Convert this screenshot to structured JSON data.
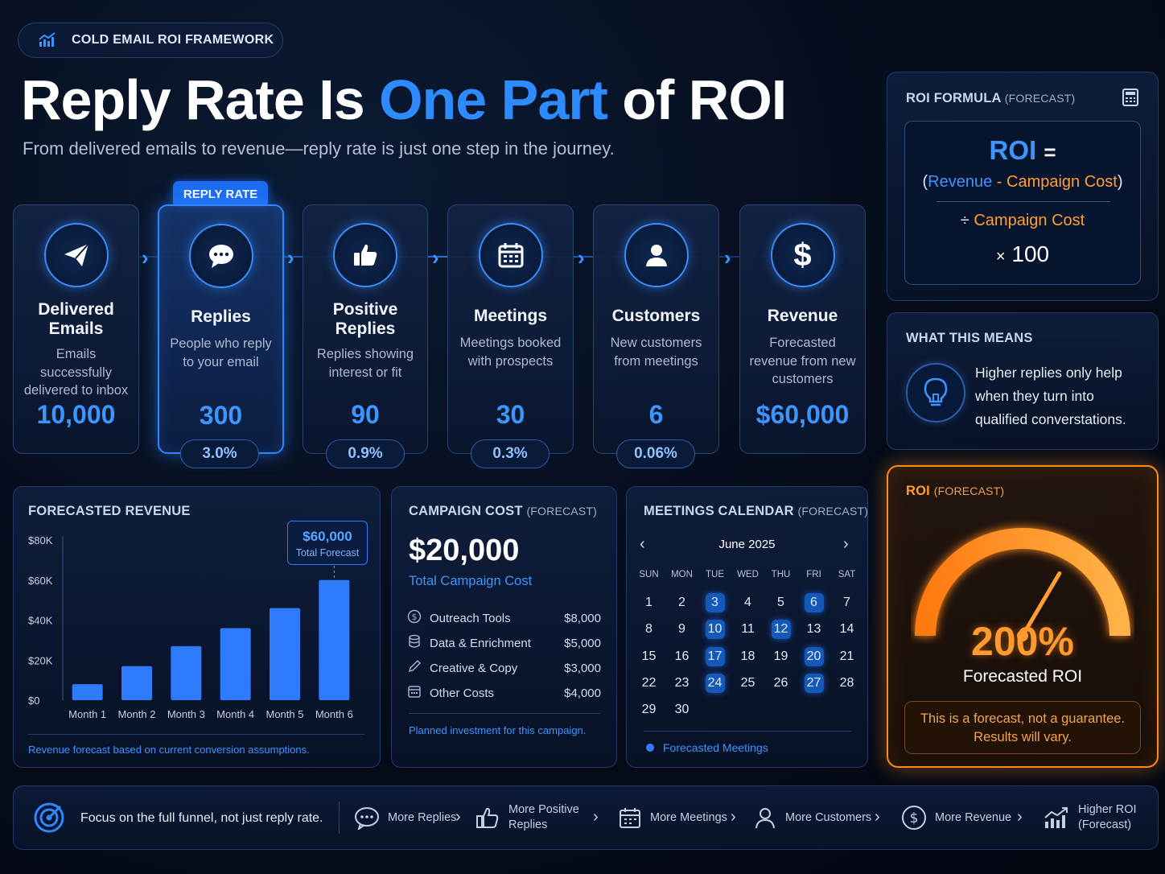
{
  "header": {
    "badge": "COLD EMAIL ROI FRAMEWORK",
    "title_part1": "Reply Rate Is ",
    "title_accent": "One Part",
    "title_part2": " of ROI",
    "subtitle": "From delivered emails to revenue—reply rate is just one step in the journey."
  },
  "funnel": {
    "highlight_tag": "REPLY RATE",
    "stages": [
      {
        "name": "Delivered Emails",
        "desc": "Emails successfully delivered to inbox",
        "value": "10,000",
        "pct": "",
        "icon": "paper-plane-icon"
      },
      {
        "name": "Replies",
        "desc": "People who reply to your email",
        "value": "300",
        "pct": "3.0%",
        "icon": "chat-bubble-icon"
      },
      {
        "name": "Positive Replies",
        "desc": "Replies showing interest or fit",
        "value": "90",
        "pct": "0.9%",
        "icon": "thumbs-up-icon"
      },
      {
        "name": "Meetings",
        "desc": "Meetings booked with prospects",
        "value": "30",
        "pct": "0.3%",
        "icon": "calendar-icon"
      },
      {
        "name": "Customers",
        "desc": "New customers from meetings",
        "value": "6",
        "pct": "0.06%",
        "icon": "user-icon"
      },
      {
        "name": "Revenue",
        "desc": "Forecasted revenue from new customers",
        "value": "$60,000",
        "pct": "",
        "icon": "dollar-icon"
      }
    ]
  },
  "formula": {
    "title": "ROI FORMULA",
    "title_suffix": "(FORECAST)",
    "roi": "ROI",
    "equals": "=",
    "open_paren": "(",
    "revenue": "Revenue",
    "minus": "-",
    "campaign_cost": "Campaign Cost",
    "close_paren": ")",
    "divide": "÷",
    "divide_term": "Campaign Cost",
    "times": "×",
    "multiplier": "100"
  },
  "meaning": {
    "title": "WHAT THIS MEANS",
    "text": "Higher replies only help when they turn into qualified converstations."
  },
  "roi": {
    "title": "ROI",
    "title_suffix": "(FORECAST)",
    "value": "200%",
    "label": "Forecasted ROI",
    "note_line1": "This is a forecast, not a guarantee.",
    "note_line2": "Results will vary.",
    "gauge_fraction": 0.67
  },
  "revenue_chart": {
    "title": "FORECASTED REVENUE",
    "callout_value": "$60,000",
    "callout_label": "Total Forecast",
    "footnote": "Revenue forecast based on current conversion assumptions."
  },
  "chart_data": {
    "type": "bar",
    "title": "FORECASTED REVENUE",
    "categories": [
      "Month 1",
      "Month 2",
      "Month 3",
      "Month 4",
      "Month 5",
      "Month 6"
    ],
    "values": [
      8000,
      17000,
      27000,
      36000,
      46000,
      60000
    ],
    "ylim": [
      0,
      80000
    ],
    "yticks": [
      "$0",
      "$20K",
      "$40K",
      "$60K",
      "$80K"
    ],
    "ytick_values": [
      0,
      20000,
      40000,
      60000,
      80000
    ],
    "xlabel": "",
    "ylabel": "",
    "grid": false,
    "annotation": {
      "text": "$60,000",
      "subtext": "Total Forecast",
      "category": "Month 6"
    },
    "color": "#2f7bff"
  },
  "cost": {
    "title": "CAMPAIGN COST",
    "title_suffix": "(FORECAST)",
    "total": "$20,000",
    "total_label": "Total Campaign Cost",
    "items": [
      {
        "label": "Outreach Tools",
        "amount": "$8,000",
        "icon": "dollar-circle-icon"
      },
      {
        "label": "Data & Enrichment",
        "amount": "$5,000",
        "icon": "database-icon"
      },
      {
        "label": "Creative & Copy",
        "amount": "$3,000",
        "icon": "pencil-icon"
      },
      {
        "label": "Other Costs",
        "amount": "$4,000",
        "icon": "calendar-small-icon"
      }
    ],
    "footnote": "Planned investment for this campaign."
  },
  "calendar": {
    "title": "MEETINGS CALENDAR",
    "title_suffix": "(FORECAST)",
    "month": "June 2025",
    "dow": [
      "SUN",
      "MON",
      "TUE",
      "WED",
      "THU",
      "FRI",
      "SAT"
    ],
    "weeks": [
      [
        "1",
        "2",
        "3",
        "4",
        "5",
        "6",
        "7"
      ],
      [
        "8",
        "9",
        "10",
        "11",
        "12",
        "13",
        "14"
      ],
      [
        "15",
        "16",
        "17",
        "18",
        "19",
        "20",
        "21"
      ],
      [
        "22",
        "23",
        "24",
        "25",
        "26",
        "27",
        "28"
      ],
      [
        "29",
        "30",
        "",
        "",
        "",
        "",
        ""
      ]
    ],
    "highlighted": [
      "3",
      "6",
      "10",
      "12",
      "17",
      "20",
      "24",
      "27"
    ],
    "legend": "Forecasted Meetings"
  },
  "footer": {
    "focus_text": "Focus on the full funnel, not just reply rate.",
    "steps": [
      {
        "label": "More Replies",
        "icon": "chat-bubble-icon"
      },
      {
        "label": "More Positive Replies",
        "icon": "thumbs-up-icon"
      },
      {
        "label": "More Meetings",
        "icon": "calendar-icon"
      },
      {
        "label": "More Customers",
        "icon": "user-icon"
      },
      {
        "label": "More Revenue",
        "icon": "dollar-circle-icon"
      },
      {
        "label": "Higher ROI (Forecast)",
        "icon": "growth-chart-icon"
      }
    ]
  }
}
